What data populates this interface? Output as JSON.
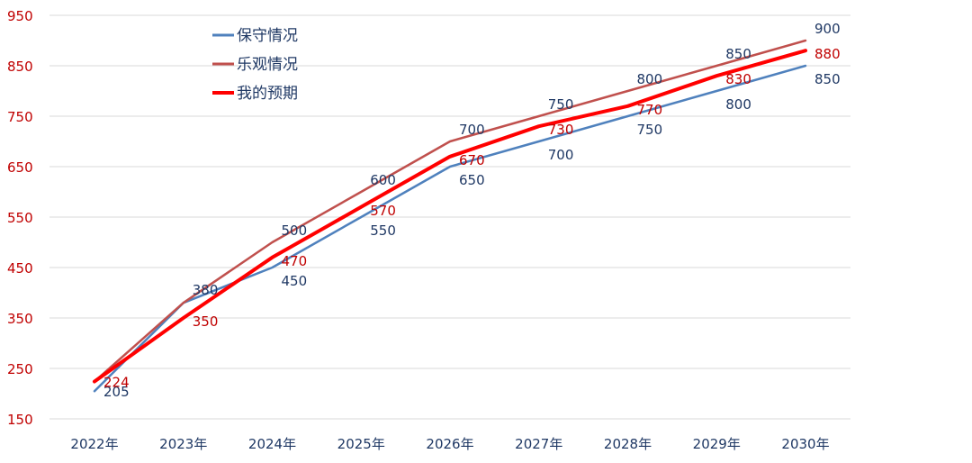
{
  "chart_data": {
    "type": "line",
    "categories": [
      "2022年",
      "2023年",
      "2024年",
      "2025年",
      "2026年",
      "2027年",
      "2028年",
      "2029年",
      "2030年"
    ],
    "ylim": [
      150,
      950
    ],
    "yticks": [
      150,
      250,
      350,
      450,
      550,
      650,
      750,
      850,
      950
    ],
    "grid": true,
    "legend_position": "top-left",
    "series": [
      {
        "name": "保守情况",
        "color": "#4f81bd",
        "label_color": "#1f3864",
        "values": [
          205,
          380,
          450,
          550,
          650,
          700,
          750,
          800,
          850
        ],
        "labels": [
          "205",
          "380",
          "450",
          "550",
          "650",
          "700",
          "750",
          "800",
          "850"
        ]
      },
      {
        "name": "乐观情况",
        "color": "#c0504d",
        "label_color": "#1f3864",
        "values": [
          224,
          380,
          500,
          600,
          700,
          750,
          800,
          850,
          900
        ],
        "labels": [
          "",
          "",
          "500",
          "600",
          "700",
          "750",
          "800",
          "850",
          "900"
        ]
      },
      {
        "name": "我的预期",
        "color": "#ff0000",
        "label_color": "#c00000",
        "values": [
          224,
          350,
          470,
          570,
          670,
          730,
          770,
          830,
          880
        ],
        "labels": [
          "224",
          "350",
          "470",
          "570",
          "670",
          "730",
          "770",
          "830",
          "880"
        ]
      }
    ]
  },
  "colors": {
    "axis_text": "#1f3864",
    "ytick_text": "#c00000",
    "grid": "#d9d9d9"
  }
}
